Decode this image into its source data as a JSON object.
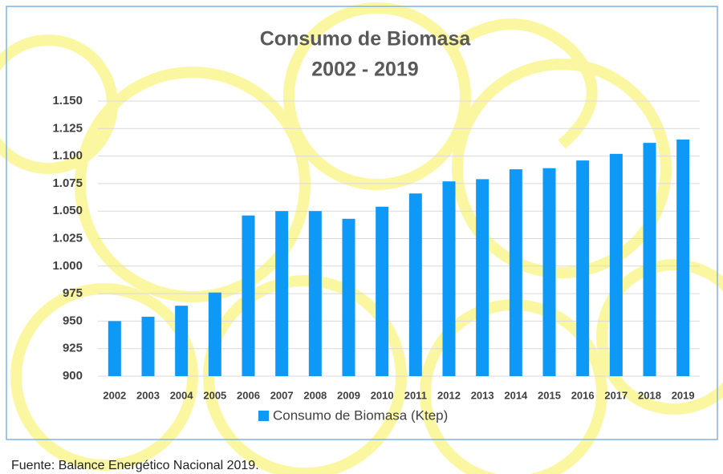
{
  "chart_data": {
    "type": "bar",
    "title": "Consumo de Biomasa",
    "subtitle": "2002 - 2019",
    "categories": [
      "2002",
      "2003",
      "2004",
      "2005",
      "2006",
      "2007",
      "2008",
      "2009",
      "2010",
      "2011",
      "2012",
      "2013",
      "2014",
      "2015",
      "2016",
      "2017",
      "2018",
      "2019"
    ],
    "series": [
      {
        "name": "Consumo de Biomasa (Ktep)",
        "color": "#0d99f5",
        "values": [
          950,
          954,
          964,
          976,
          1046,
          1050,
          1050,
          1043,
          1054,
          1066,
          1077,
          1079,
          1088,
          1089,
          1096,
          1102,
          1112,
          1115
        ]
      }
    ],
    "ylim": [
      900,
      1150
    ],
    "yticks": [
      900,
      925,
      950,
      975,
      {
        "value": 1000,
        "label": "1.000"
      },
      {
        "value": 1025,
        "label": "1.025"
      },
      {
        "value": 1050,
        "label": "1.050"
      },
      {
        "value": 1075,
        "label": "1.075"
      },
      {
        "value": 1100,
        "label": "1.100"
      },
      {
        "value": 1125,
        "label": "1.125"
      },
      {
        "value": 1150,
        "label": "1.150"
      }
    ],
    "grid": true,
    "legend": "bottom",
    "source": "Fuente: Balance Energético Nacional 2019."
  }
}
